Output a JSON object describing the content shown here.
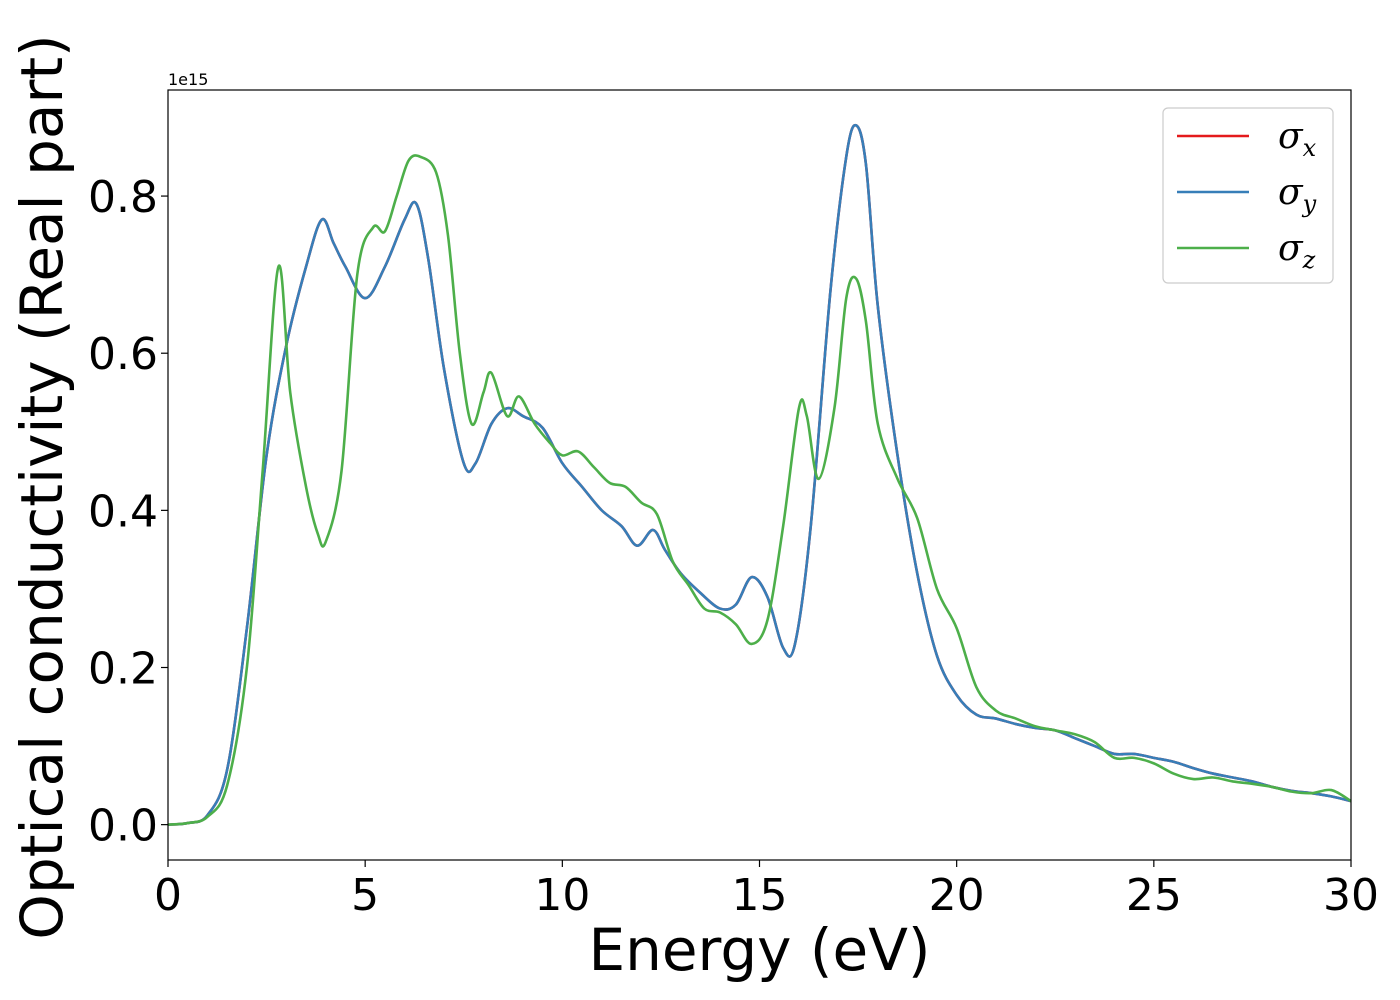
{
  "chart_data": {
    "type": "line",
    "xlabel": "Energy (eV)",
    "ylabel": "Optical conductivity (Real part)",
    "y_offset_text": "1e15",
    "xlim": [
      0,
      30
    ],
    "ylim": [
      -0.045,
      0.935
    ],
    "xticks": [
      0,
      5,
      10,
      15,
      20,
      25,
      30
    ],
    "xtick_labels": [
      "0",
      "5",
      "10",
      "15",
      "20",
      "25",
      "30"
    ],
    "yticks": [
      0.0,
      0.2,
      0.4,
      0.6,
      0.8
    ],
    "ytick_labels": [
      "0.0",
      "0.2",
      "0.4",
      "0.6",
      "0.8"
    ],
    "grid": false,
    "legend_position": "top-right",
    "series": [
      {
        "name": "σx",
        "legend_base": "σ",
        "legend_sub": "x",
        "color": "#e41a1c",
        "x": [
          0,
          0.5,
          1.0,
          1.5,
          2.0,
          2.5,
          3.0,
          3.5,
          3.9,
          4.2,
          4.5,
          5.0,
          5.5,
          6.0,
          6.3,
          6.6,
          7.0,
          7.5,
          7.8,
          8.2,
          8.6,
          9.0,
          9.5,
          10.0,
          10.5,
          11.0,
          11.5,
          11.9,
          12.3,
          12.6,
          13.0,
          13.5,
          14.0,
          14.4,
          14.8,
          15.2,
          15.6,
          15.9,
          16.3,
          16.8,
          17.2,
          17.45,
          17.7,
          18.0,
          18.5,
          19.0,
          19.5,
          20.0,
          20.5,
          21.0,
          21.5,
          22.0,
          22.5,
          23.0,
          23.5,
          24.0,
          24.5,
          25.0,
          25.5,
          26.0,
          26.5,
          27.0,
          27.5,
          28.0,
          28.5,
          29.0,
          29.5,
          30.0
        ],
        "y": [
          0.0,
          0.002,
          0.012,
          0.07,
          0.25,
          0.47,
          0.61,
          0.71,
          0.77,
          0.74,
          0.71,
          0.67,
          0.71,
          0.77,
          0.79,
          0.72,
          0.58,
          0.46,
          0.46,
          0.51,
          0.53,
          0.52,
          0.505,
          0.46,
          0.43,
          0.4,
          0.38,
          0.355,
          0.375,
          0.35,
          0.32,
          0.295,
          0.275,
          0.28,
          0.315,
          0.29,
          0.225,
          0.23,
          0.38,
          0.68,
          0.85,
          0.89,
          0.84,
          0.66,
          0.47,
          0.32,
          0.215,
          0.165,
          0.14,
          0.135,
          0.128,
          0.123,
          0.12,
          0.11,
          0.1,
          0.09,
          0.09,
          0.085,
          0.08,
          0.072,
          0.065,
          0.06,
          0.055,
          0.048,
          0.043,
          0.04,
          0.036,
          0.03
        ]
      },
      {
        "name": "σy",
        "legend_base": "σ",
        "legend_sub": "y",
        "color": "#377eb8",
        "x": [
          0,
          0.5,
          1.0,
          1.5,
          2.0,
          2.5,
          3.0,
          3.5,
          3.9,
          4.2,
          4.5,
          5.0,
          5.5,
          6.0,
          6.3,
          6.6,
          7.0,
          7.5,
          7.8,
          8.2,
          8.6,
          9.0,
          9.5,
          10.0,
          10.5,
          11.0,
          11.5,
          11.9,
          12.3,
          12.6,
          13.0,
          13.5,
          14.0,
          14.4,
          14.8,
          15.2,
          15.6,
          15.9,
          16.3,
          16.8,
          17.2,
          17.45,
          17.7,
          18.0,
          18.5,
          19.0,
          19.5,
          20.0,
          20.5,
          21.0,
          21.5,
          22.0,
          22.5,
          23.0,
          23.5,
          24.0,
          24.5,
          25.0,
          25.5,
          26.0,
          26.5,
          27.0,
          27.5,
          28.0,
          28.5,
          29.0,
          29.5,
          30.0
        ],
        "y": [
          0.0,
          0.002,
          0.012,
          0.07,
          0.25,
          0.47,
          0.61,
          0.71,
          0.77,
          0.74,
          0.71,
          0.67,
          0.71,
          0.77,
          0.79,
          0.72,
          0.58,
          0.46,
          0.46,
          0.51,
          0.53,
          0.52,
          0.505,
          0.46,
          0.43,
          0.4,
          0.38,
          0.355,
          0.375,
          0.35,
          0.32,
          0.295,
          0.275,
          0.28,
          0.315,
          0.29,
          0.225,
          0.23,
          0.38,
          0.68,
          0.85,
          0.89,
          0.84,
          0.66,
          0.47,
          0.32,
          0.215,
          0.165,
          0.14,
          0.135,
          0.128,
          0.123,
          0.12,
          0.11,
          0.1,
          0.09,
          0.09,
          0.085,
          0.08,
          0.072,
          0.065,
          0.06,
          0.055,
          0.048,
          0.043,
          0.04,
          0.036,
          0.03
        ]
      },
      {
        "name": "σz",
        "legend_base": "σ",
        "legend_sub": "z",
        "color": "#4daf4a",
        "x": [
          0,
          0.5,
          1.0,
          1.5,
          2.0,
          2.4,
          2.8,
          3.1,
          3.5,
          3.8,
          4.0,
          4.4,
          4.8,
          5.2,
          5.5,
          5.8,
          6.1,
          6.4,
          6.8,
          7.1,
          7.4,
          7.7,
          8.0,
          8.2,
          8.6,
          8.9,
          9.3,
          9.7,
          10.0,
          10.4,
          10.8,
          11.2,
          11.6,
          12.0,
          12.4,
          12.8,
          13.2,
          13.6,
          14.0,
          14.4,
          14.8,
          15.2,
          15.6,
          16.0,
          16.2,
          16.5,
          16.9,
          17.2,
          17.45,
          17.7,
          18.0,
          18.5,
          19.0,
          19.5,
          20.0,
          20.5,
          21.0,
          21.5,
          22.0,
          22.5,
          23.0,
          23.5,
          24.0,
          24.5,
          25.0,
          25.5,
          26.0,
          26.5,
          27.0,
          27.5,
          28.0,
          28.5,
          29.0,
          29.5,
          30.0
        ],
        "y": [
          0.0,
          0.002,
          0.01,
          0.05,
          0.2,
          0.45,
          0.71,
          0.55,
          0.43,
          0.37,
          0.36,
          0.45,
          0.7,
          0.76,
          0.755,
          0.8,
          0.845,
          0.85,
          0.83,
          0.75,
          0.6,
          0.51,
          0.55,
          0.575,
          0.52,
          0.545,
          0.51,
          0.485,
          0.47,
          0.475,
          0.455,
          0.435,
          0.43,
          0.41,
          0.395,
          0.335,
          0.305,
          0.275,
          0.27,
          0.255,
          0.23,
          0.26,
          0.38,
          0.53,
          0.52,
          0.44,
          0.53,
          0.67,
          0.695,
          0.64,
          0.51,
          0.44,
          0.39,
          0.3,
          0.25,
          0.175,
          0.145,
          0.135,
          0.125,
          0.12,
          0.115,
          0.105,
          0.085,
          0.085,
          0.078,
          0.065,
          0.058,
          0.06,
          0.055,
          0.052,
          0.048,
          0.042,
          0.04,
          0.044,
          0.03
        ]
      }
    ]
  }
}
